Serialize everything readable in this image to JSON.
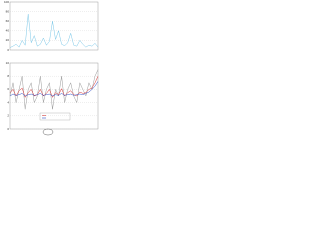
{
  "chart_data": [
    {
      "type": "line",
      "xlim": [
        0,
        29
      ],
      "ylim": [
        0,
        100
      ],
      "yticks": [
        0,
        20,
        40,
        60,
        80,
        100
      ],
      "grid": true,
      "x": [
        0,
        1,
        2,
        3,
        4,
        5,
        6,
        7,
        8,
        9,
        10,
        11,
        12,
        13,
        14,
        15,
        16,
        17,
        18,
        19,
        20,
        21,
        22,
        23,
        24,
        25,
        26,
        27,
        28,
        29
      ],
      "series": [
        {
          "color": "#7cc8e8",
          "values": [
            5,
            8,
            12,
            6,
            20,
            10,
            75,
            15,
            30,
            8,
            12,
            25,
            10,
            18,
            60,
            22,
            40,
            12,
            9,
            15,
            35,
            10,
            8,
            20,
            12,
            6,
            10,
            8,
            14,
            6
          ]
        }
      ]
    },
    {
      "type": "line",
      "xlim": [
        0,
        29
      ],
      "ylim": [
        0,
        10
      ],
      "yticks": [
        0,
        2,
        4,
        6,
        8,
        10
      ],
      "grid": true,
      "x": [
        0,
        1,
        2,
        3,
        4,
        5,
        6,
        7,
        8,
        9,
        10,
        11,
        12,
        13,
        14,
        15,
        16,
        17,
        18,
        19,
        20,
        21,
        22,
        23,
        24,
        25,
        26,
        27,
        28,
        29
      ],
      "series": [
        {
          "color": "#9a9a9a",
          "values": [
            5,
            7,
            4,
            6,
            8,
            3,
            6,
            7,
            4,
            5,
            8,
            4,
            6,
            7,
            3,
            6,
            5,
            8,
            4,
            6,
            7,
            5,
            4,
            7,
            6,
            5,
            7,
            6,
            8,
            9
          ]
        },
        {
          "color": "#d83030",
          "values": [
            5.5,
            6,
            5,
            5.8,
            6.2,
            4.8,
            5.5,
            6,
            5,
            5.2,
            6,
            5,
            5.4,
            6,
            4.8,
            5.5,
            5.2,
            6.1,
            5,
            5.5,
            5.8,
            5.2,
            5,
            5.6,
            5.4,
            5.5,
            6,
            6.2,
            7,
            8
          ]
        },
        {
          "color": "#3050c8",
          "values": [
            5,
            5.3,
            5.1,
            5.2,
            5.4,
            5,
            5.2,
            5.3,
            5.1,
            5.2,
            5.4,
            5.1,
            5.2,
            5.3,
            5,
            5.2,
            5.1,
            5.4,
            5.1,
            5.2,
            5.3,
            5.1,
            5.2,
            5.3,
            5.2,
            5.4,
            5.6,
            6,
            6.5,
            7.2
          ]
        }
      ]
    }
  ]
}
